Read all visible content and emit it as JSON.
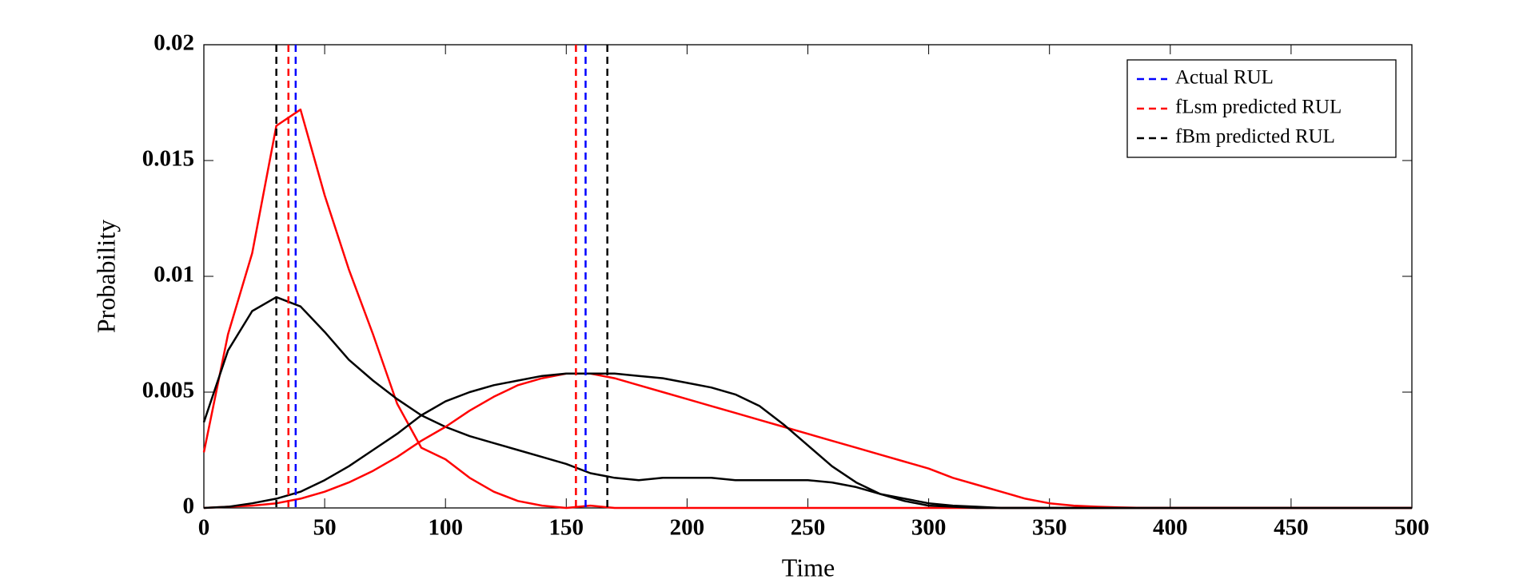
{
  "chart_data": {
    "type": "line",
    "xlabel": "Time",
    "ylabel": "Probability",
    "xlim": [
      0,
      500
    ],
    "xticks": [
      0,
      50,
      100,
      150,
      200,
      250,
      300,
      350,
      400,
      450,
      500
    ],
    "ylim": [
      0,
      0.02
    ],
    "yticks": [
      0,
      0.005,
      0.01,
      0.015,
      0.02
    ],
    "legend_position": "upper right",
    "x": [
      0,
      10,
      20,
      30,
      40,
      50,
      60,
      70,
      80,
      90,
      100,
      110,
      120,
      130,
      140,
      150,
      160,
      170,
      180,
      190,
      200,
      210,
      220,
      230,
      240,
      250,
      260,
      270,
      280,
      290,
      300,
      310,
      320,
      330,
      340,
      350,
      360,
      370,
      380,
      390,
      400,
      410,
      420,
      430,
      440,
      450,
      460,
      470,
      480,
      490,
      500
    ],
    "series": [
      {
        "color": "#ff0000",
        "values": [
          0.0024,
          0.0075,
          0.011,
          0.0165,
          0.0172,
          0.0135,
          0.0103,
          0.0075,
          0.0045,
          0.0026,
          0.0021,
          0.0013,
          0.0007,
          0.0003,
          0.0001,
          0,
          0.0001,
          0,
          0,
          0,
          0,
          0,
          0,
          0,
          0,
          0,
          0,
          0,
          0,
          0,
          0,
          0,
          0,
          0,
          0,
          0,
          0,
          0,
          0,
          0,
          0,
          0,
          0,
          0,
          0,
          0,
          0,
          0,
          0,
          0,
          0
        ]
      },
      {
        "color": "#000000",
        "values": [
          0.0037,
          0.0068,
          0.0085,
          0.0091,
          0.0087,
          0.0076,
          0.0064,
          0.0055,
          0.0047,
          0.004,
          0.0035,
          0.0031,
          0.0028,
          0.0025,
          0.0022,
          0.0019,
          0.0015,
          0.0013,
          0.0012,
          0.0013,
          0.0013,
          0.0013,
          0.0012,
          0.0012,
          0.0012,
          0.0012,
          0.0011,
          0.0009,
          0.0006,
          0.0004,
          0.0002,
          0.0001,
          5e-05,
          0,
          0,
          0,
          0,
          0,
          0,
          0,
          0,
          0,
          0,
          0,
          0,
          0,
          0,
          0,
          0,
          0,
          0
        ]
      },
      {
        "color": "#ff0000",
        "values": [
          0,
          5e-05,
          0.0001,
          0.0002,
          0.0004,
          0.0007,
          0.0011,
          0.0016,
          0.0022,
          0.0029,
          0.0035,
          0.0042,
          0.0048,
          0.0053,
          0.0056,
          0.0058,
          0.0058,
          0.0056,
          0.0053,
          0.005,
          0.0047,
          0.0044,
          0.0041,
          0.0038,
          0.0035,
          0.0032,
          0.0029,
          0.0026,
          0.0023,
          0.002,
          0.0017,
          0.0013,
          0.001,
          0.0007,
          0.0004,
          0.0002,
          0.0001,
          5e-05,
          2e-05,
          0,
          0,
          0,
          0,
          0,
          0,
          0,
          0,
          0,
          0,
          0,
          0
        ]
      },
      {
        "color": "#000000",
        "values": [
          0,
          5e-05,
          0.0002,
          0.0004,
          0.0007,
          0.0012,
          0.0018,
          0.0025,
          0.0032,
          0.004,
          0.0046,
          0.005,
          0.0053,
          0.0055,
          0.0057,
          0.0058,
          0.0058,
          0.0058,
          0.0057,
          0.0056,
          0.0054,
          0.0052,
          0.0049,
          0.0044,
          0.0036,
          0.0027,
          0.0018,
          0.0011,
          0.0006,
          0.0003,
          0.0001,
          5e-05,
          0,
          0,
          0,
          0,
          0,
          0,
          0,
          0,
          0,
          0,
          0,
          0,
          0,
          0,
          0,
          0,
          0,
          0,
          0
        ]
      }
    ],
    "vlines": [
      {
        "name": "Actual RUL",
        "color": "#0000ff",
        "x": [
          38,
          158
        ]
      },
      {
        "name": "fLsm predicted RUL",
        "color": "#ff0000",
        "x": [
          35,
          154
        ]
      },
      {
        "name": "fBm predicted RUL",
        "color": "#000000",
        "x": [
          30,
          167
        ]
      }
    ]
  }
}
